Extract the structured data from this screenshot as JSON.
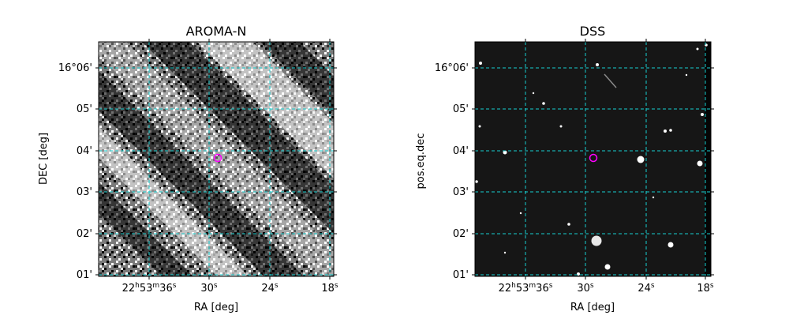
{
  "chart_data": [
    {
      "type": "image",
      "title": "AROMA-N",
      "xlabel": "RA [deg]",
      "ylabel": "DEC [deg]",
      "x_ticks": [
        {
          "h": "22",
          "m": "53",
          "s": "36"
        },
        {
          "s": "30"
        },
        {
          "s": "24"
        },
        {
          "s": "18"
        }
      ],
      "y_ticks": [
        "01'",
        "02'",
        "03'",
        "04'",
        "05'",
        "16°06'"
      ],
      "grid": true,
      "grid_color": "#17cfd0",
      "marker": {
        "shape": "circle",
        "color": "#ff00ff"
      },
      "image_style": "noise"
    },
    {
      "type": "image",
      "title": "DSS",
      "xlabel": "RA [deg]",
      "ylabel": "pos.eq.dec",
      "x_ticks": [
        {
          "h": "22",
          "m": "53",
          "s": "36"
        },
        {
          "s": "30"
        },
        {
          "s": "24"
        },
        {
          "s": "18"
        }
      ],
      "y_ticks": [
        "01'",
        "02'",
        "03'",
        "04'",
        "05'",
        "16°06'"
      ],
      "grid": true,
      "grid_color": "#17cfd0",
      "marker": {
        "shape": "circle",
        "color": "#ff00ff"
      },
      "image_style": "starfield"
    }
  ]
}
